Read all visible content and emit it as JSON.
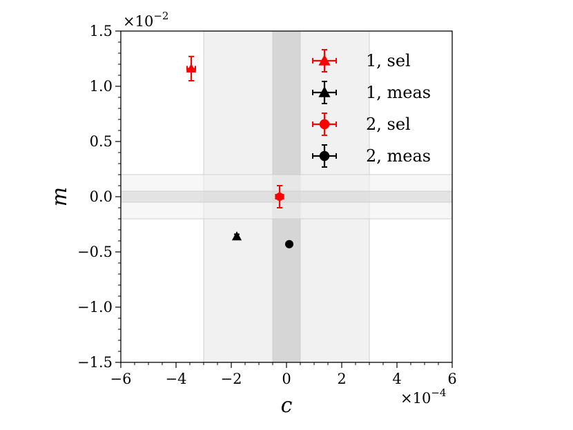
{
  "chart_data": {
    "type": "scatter",
    "title": "",
    "xlabel": "c",
    "ylabel": "m",
    "x_multiplier": {
      "base": "×10",
      "exponent": "−4"
    },
    "y_multiplier": {
      "base": "×10",
      "exponent": "−2"
    },
    "xlim": [
      -6,
      6
    ],
    "ylim": [
      -1.5,
      1.5
    ],
    "x_ticks": [
      -6,
      -4,
      -2,
      0,
      2,
      4,
      6
    ],
    "x_tick_labels": [
      "−6",
      "−4",
      "−2",
      "0",
      "2",
      "4",
      "6"
    ],
    "y_ticks": [
      -1.5,
      -1.0,
      -0.5,
      0.0,
      0.5,
      1.0,
      1.5
    ],
    "y_tick_labels": [
      "−1.5",
      "−1.0",
      "−0.5",
      "0.0",
      "0.5",
      "1.0",
      "1.5"
    ],
    "grid": false,
    "legend_position": "top-right",
    "bands": {
      "vertical": [
        {
          "range": [
            -3,
            3
          ],
          "color": "#f1f1f1"
        },
        {
          "range": [
            -0.5,
            0.5
          ],
          "color": "#d6d6d6"
        }
      ],
      "horizontal": [
        {
          "range": [
            -0.2,
            0.2
          ],
          "color": "#f1f1f1"
        },
        {
          "range": [
            -0.05,
            0.05
          ],
          "color": "#d6d6d6"
        }
      ]
    },
    "series": [
      {
        "name": "1, sel",
        "marker": "triangle",
        "color": "#ff0000",
        "points": [
          {
            "x": -3.45,
            "y": 1.16,
            "xerr": 0.15,
            "yerr": 0.11
          }
        ]
      },
      {
        "name": "1, meas",
        "marker": "triangle",
        "color": "#000000",
        "points": [
          {
            "x": -1.8,
            "y": -0.36,
            "xerr": 0.04,
            "yerr": 0.02
          }
        ]
      },
      {
        "name": "2, sel",
        "marker": "circle",
        "color": "#ff0000",
        "points": [
          {
            "x": -0.25,
            "y": 0.0,
            "xerr": 0.14,
            "yerr": 0.1
          }
        ]
      },
      {
        "name": "2, meas",
        "marker": "circle",
        "color": "#000000",
        "points": [
          {
            "x": 0.1,
            "y": -0.43,
            "xerr": 0.03,
            "yerr": 0.02
          }
        ]
      }
    ]
  }
}
